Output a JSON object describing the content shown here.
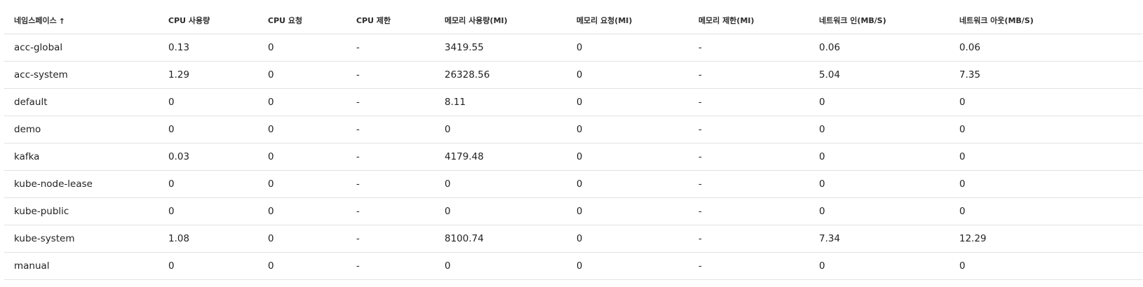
{
  "table": {
    "headers": [
      {
        "label": "네임스페이스",
        "sort_icon": "arrow-up-icon",
        "sort_glyph": "↑"
      },
      {
        "label": "CPU 사용량"
      },
      {
        "label": "CPU 요청"
      },
      {
        "label": "CPU 제한"
      },
      {
        "label": "메모리 사용량(MI)"
      },
      {
        "label": "메모리 요청(MI)"
      },
      {
        "label": "메모리 제한(MI)"
      },
      {
        "label": "네트워크 인(MB/S)"
      },
      {
        "label": "네트워크 아웃(MB/S)"
      }
    ],
    "rows": [
      [
        "acc-global",
        "0.13",
        "0",
        "-",
        "3419.55",
        "0",
        "-",
        "0.06",
        "0.06"
      ],
      [
        "acc-system",
        "1.29",
        "0",
        "-",
        "26328.56",
        "0",
        "-",
        "5.04",
        "7.35"
      ],
      [
        "default",
        "0",
        "0",
        "-",
        "8.11",
        "0",
        "-",
        "0",
        "0"
      ],
      [
        "demo",
        "0",
        "0",
        "-",
        "0",
        "0",
        "-",
        "0",
        "0"
      ],
      [
        "kafka",
        "0.03",
        "0",
        "-",
        "4179.48",
        "0",
        "-",
        "0",
        "0"
      ],
      [
        "kube-node-lease",
        "0",
        "0",
        "-",
        "0",
        "0",
        "-",
        "0",
        "0"
      ],
      [
        "kube-public",
        "0",
        "0",
        "-",
        "0",
        "0",
        "-",
        "0",
        "0"
      ],
      [
        "kube-system",
        "1.08",
        "0",
        "-",
        "8100.74",
        "0",
        "-",
        "7.34",
        "12.29"
      ],
      [
        "manual",
        "0",
        "0",
        "-",
        "0",
        "0",
        "-",
        "0",
        "0"
      ]
    ]
  }
}
